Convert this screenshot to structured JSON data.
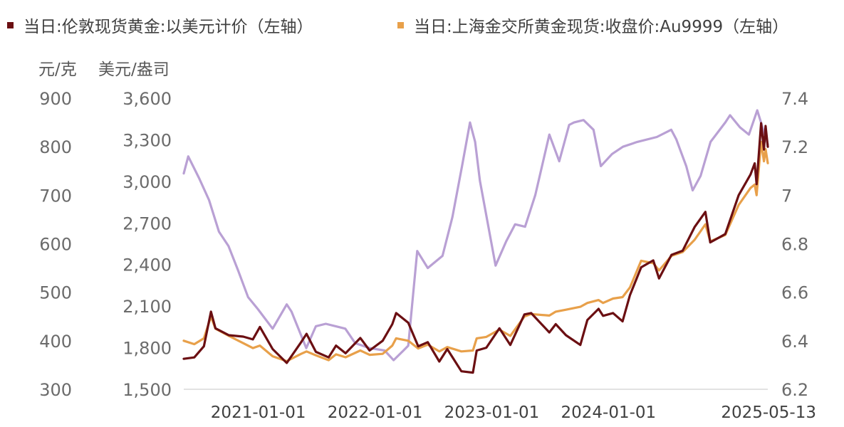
{
  "chart_data": {
    "type": "line",
    "legend": {
      "placement": "top",
      "entries": [
        {
          "label": "当日:伦敦现货黄金:以美元计价（左轴）",
          "color": "#6b0f12"
        },
        {
          "label": "当日:上海金交所黄金现货:收盘价:Au9999（左轴）",
          "color": "#e8a04a"
        }
      ]
    },
    "unit_labels": {
      "left_outer": "元/克",
      "left_inner": "美元/盎司"
    },
    "axes": {
      "left_outer": {
        "min": 300,
        "max": 900,
        "ticks": [
          300,
          400,
          500,
          600,
          700,
          800,
          900
        ],
        "tick_labels": [
          "300",
          "400",
          "500",
          "600",
          "700",
          "800",
          "900"
        ]
      },
      "left_inner": {
        "min": 1500,
        "max": 3600,
        "ticks": [
          1500,
          1800,
          2100,
          2400,
          2700,
          3000,
          3300,
          3600
        ],
        "tick_labels": [
          "1,500",
          "1,800",
          "2,100",
          "2,400",
          "2,700",
          "3,000",
          "3,300",
          "3,600"
        ]
      },
      "right": {
        "min": 6.2,
        "max": 7.4,
        "ticks": [
          6.2,
          6.4,
          6.6,
          6.8,
          7.0,
          7.2,
          7.4
        ],
        "tick_labels": [
          "6.2",
          "6.4",
          "6.6",
          "6.8",
          "7",
          "7.2",
          "7.4"
        ]
      }
    },
    "x": {
      "start": "2020-05-13",
      "end": "2025-05-13",
      "tick_dates": [
        "2021-01-01",
        "2022-01-01",
        "2023-01-01",
        "2024-01-01",
        "2025-05-13"
      ],
      "tick_labels": [
        "2021-01-01",
        "2022-01-01",
        "2023-01-01",
        "2024-01-01",
        "2025-05-13"
      ]
    },
    "grid": false,
    "series": [
      {
        "name": "当日:伦敦现货黄金:以美元计价（左轴）",
        "axis": "left_inner",
        "color": "#6b0f12",
        "points": [
          [
            "2020-05-13",
            1720
          ],
          [
            "2020-06-15",
            1730
          ],
          [
            "2020-07-15",
            1810
          ],
          [
            "2020-08-06",
            2060
          ],
          [
            "2020-08-20",
            1940
          ],
          [
            "2020-10-01",
            1890
          ],
          [
            "2020-11-15",
            1880
          ],
          [
            "2020-12-15",
            1860
          ],
          [
            "2021-01-06",
            1950
          ],
          [
            "2021-02-15",
            1790
          ],
          [
            "2021-03-31",
            1690
          ],
          [
            "2021-05-15",
            1840
          ],
          [
            "2021-06-01",
            1900
          ],
          [
            "2021-06-30",
            1770
          ],
          [
            "2021-08-09",
            1730
          ],
          [
            "2021-09-01",
            1815
          ],
          [
            "2021-10-01",
            1760
          ],
          [
            "2021-11-16",
            1870
          ],
          [
            "2021-12-15",
            1780
          ],
          [
            "2022-01-25",
            1850
          ],
          [
            "2022-02-24",
            1970
          ],
          [
            "2022-03-08",
            2050
          ],
          [
            "2022-04-15",
            1980
          ],
          [
            "2022-05-16",
            1810
          ],
          [
            "2022-06-15",
            1840
          ],
          [
            "2022-07-21",
            1700
          ],
          [
            "2022-08-15",
            1790
          ],
          [
            "2022-09-28",
            1630
          ],
          [
            "2022-11-03",
            1620
          ],
          [
            "2022-11-15",
            1780
          ],
          [
            "2022-12-15",
            1800
          ],
          [
            "2023-01-25",
            1940
          ],
          [
            "2023-02-28",
            1820
          ],
          [
            "2023-04-13",
            2040
          ],
          [
            "2023-05-04",
            2050
          ],
          [
            "2023-06-30",
            1910
          ],
          [
            "2023-07-20",
            1970
          ],
          [
            "2023-08-21",
            1890
          ],
          [
            "2023-10-05",
            1820
          ],
          [
            "2023-10-27",
            2000
          ],
          [
            "2023-12-01",
            2080
          ],
          [
            "2023-12-15",
            2030
          ],
          [
            "2024-01-15",
            2050
          ],
          [
            "2024-02-14",
            1990
          ],
          [
            "2024-03-08",
            2180
          ],
          [
            "2024-04-12",
            2380
          ],
          [
            "2024-05-20",
            2430
          ],
          [
            "2024-06-07",
            2300
          ],
          [
            "2024-07-16",
            2470
          ],
          [
            "2024-08-20",
            2500
          ],
          [
            "2024-09-26",
            2670
          ],
          [
            "2024-10-30",
            2780
          ],
          [
            "2024-11-14",
            2560
          ],
          [
            "2024-12-31",
            2620
          ],
          [
            "2025-02-11",
            2900
          ],
          [
            "2025-03-20",
            3050
          ],
          [
            "2025-04-02",
            3130
          ],
          [
            "2025-04-08",
            2980
          ],
          [
            "2025-04-22",
            3420
          ],
          [
            "2025-05-01",
            3230
          ],
          [
            "2025-05-06",
            3400
          ],
          [
            "2025-05-13",
            3250
          ]
        ]
      },
      {
        "name": "当日:上海金交所黄金现货:收盘价:Au9999（左轴）",
        "axis": "left_outer",
        "color": "#e8a04a",
        "points": [
          [
            "2020-05-13",
            400
          ],
          [
            "2020-06-15",
            393
          ],
          [
            "2020-07-15",
            405
          ],
          [
            "2020-08-06",
            450
          ],
          [
            "2020-08-20",
            425
          ],
          [
            "2020-10-01",
            410
          ],
          [
            "2020-11-15",
            395
          ],
          [
            "2020-12-15",
            385
          ],
          [
            "2021-01-06",
            390
          ],
          [
            "2021-02-15",
            368
          ],
          [
            "2021-03-31",
            358
          ],
          [
            "2021-05-15",
            373
          ],
          [
            "2021-06-01",
            378
          ],
          [
            "2021-06-30",
            370
          ],
          [
            "2021-08-09",
            360
          ],
          [
            "2021-09-01",
            372
          ],
          [
            "2021-10-01",
            366
          ],
          [
            "2021-11-16",
            380
          ],
          [
            "2021-12-15",
            371
          ],
          [
            "2022-01-25",
            373
          ],
          [
            "2022-02-24",
            390
          ],
          [
            "2022-03-08",
            405
          ],
          [
            "2022-04-15",
            400
          ],
          [
            "2022-05-16",
            384
          ],
          [
            "2022-06-15",
            392
          ],
          [
            "2022-07-21",
            378
          ],
          [
            "2022-08-15",
            387
          ],
          [
            "2022-09-28",
            378
          ],
          [
            "2022-11-03",
            380
          ],
          [
            "2022-11-15",
            405
          ],
          [
            "2022-12-15",
            408
          ],
          [
            "2023-01-25",
            423
          ],
          [
            "2023-02-28",
            410
          ],
          [
            "2023-04-13",
            450
          ],
          [
            "2023-05-04",
            455
          ],
          [
            "2023-06-30",
            452
          ],
          [
            "2023-07-20",
            460
          ],
          [
            "2023-08-21",
            464
          ],
          [
            "2023-10-05",
            470
          ],
          [
            "2023-10-27",
            478
          ],
          [
            "2023-12-01",
            484
          ],
          [
            "2023-12-15",
            478
          ],
          [
            "2024-01-15",
            487
          ],
          [
            "2024-02-14",
            490
          ],
          [
            "2024-03-08",
            510
          ],
          [
            "2024-04-12",
            565
          ],
          [
            "2024-05-20",
            560
          ],
          [
            "2024-06-07",
            545
          ],
          [
            "2024-07-16",
            575
          ],
          [
            "2024-08-20",
            583
          ],
          [
            "2024-09-26",
            608
          ],
          [
            "2024-10-30",
            640
          ],
          [
            "2024-11-14",
            605
          ],
          [
            "2024-12-31",
            618
          ],
          [
            "2025-02-11",
            680
          ],
          [
            "2025-03-20",
            715
          ],
          [
            "2025-04-02",
            722
          ],
          [
            "2025-04-08",
            700
          ],
          [
            "2025-04-22",
            810
          ],
          [
            "2025-05-01",
            770
          ],
          [
            "2025-05-06",
            795
          ],
          [
            "2025-05-13",
            766
          ]
        ]
      },
      {
        "name": "",
        "axis": "right",
        "color": "#b9a0d4",
        "points": [
          [
            "2020-05-13",
            7.09
          ],
          [
            "2020-05-27",
            7.16
          ],
          [
            "2020-06-30",
            7.07
          ],
          [
            "2020-07-31",
            6.98
          ],
          [
            "2020-08-31",
            6.85
          ],
          [
            "2020-09-30",
            6.79
          ],
          [
            "2020-10-30",
            6.69
          ],
          [
            "2020-11-30",
            6.58
          ],
          [
            "2020-12-31",
            6.53
          ],
          [
            "2021-02-15",
            6.45
          ],
          [
            "2021-03-31",
            6.55
          ],
          [
            "2021-04-15",
            6.52
          ],
          [
            "2021-05-31",
            6.37
          ],
          [
            "2021-06-30",
            6.46
          ],
          [
            "2021-07-31",
            6.47
          ],
          [
            "2021-08-31",
            6.46
          ],
          [
            "2021-09-30",
            6.45
          ],
          [
            "2021-10-31",
            6.39
          ],
          [
            "2021-12-15",
            6.37
          ],
          [
            "2022-01-31",
            6.36
          ],
          [
            "2022-02-28",
            6.32
          ],
          [
            "2022-03-31",
            6.36
          ],
          [
            "2022-04-15",
            6.38
          ],
          [
            "2022-05-13",
            6.77
          ],
          [
            "2022-06-15",
            6.7
          ],
          [
            "2022-07-31",
            6.75
          ],
          [
            "2022-08-31",
            6.91
          ],
          [
            "2022-09-30",
            7.12
          ],
          [
            "2022-10-25",
            7.3
          ],
          [
            "2022-11-10",
            7.22
          ],
          [
            "2022-11-25",
            7.06
          ],
          [
            "2023-01-13",
            6.71
          ],
          [
            "2023-02-15",
            6.81
          ],
          [
            "2023-03-15",
            6.88
          ],
          [
            "2023-04-15",
            6.87
          ],
          [
            "2023-05-17",
            7.0
          ],
          [
            "2023-06-30",
            7.25
          ],
          [
            "2023-07-31",
            7.14
          ],
          [
            "2023-08-31",
            7.29
          ],
          [
            "2023-09-15",
            7.3
          ],
          [
            "2023-10-15",
            7.31
          ],
          [
            "2023-11-15",
            7.27
          ],
          [
            "2023-12-08",
            7.12
          ],
          [
            "2024-01-12",
            7.17
          ],
          [
            "2024-02-15",
            7.2
          ],
          [
            "2024-03-31",
            7.22
          ],
          [
            "2024-05-31",
            7.24
          ],
          [
            "2024-07-15",
            7.27
          ],
          [
            "2024-07-31",
            7.23
          ],
          [
            "2024-08-31",
            7.12
          ],
          [
            "2024-09-20",
            7.02
          ],
          [
            "2024-10-15",
            7.08
          ],
          [
            "2024-11-15",
            7.22
          ],
          [
            "2024-12-31",
            7.3
          ],
          [
            "2025-01-15",
            7.33
          ],
          [
            "2025-02-15",
            7.28
          ],
          [
            "2025-03-15",
            7.25
          ],
          [
            "2025-04-10",
            7.35
          ],
          [
            "2025-05-13",
            7.21
          ]
        ]
      }
    ]
  }
}
